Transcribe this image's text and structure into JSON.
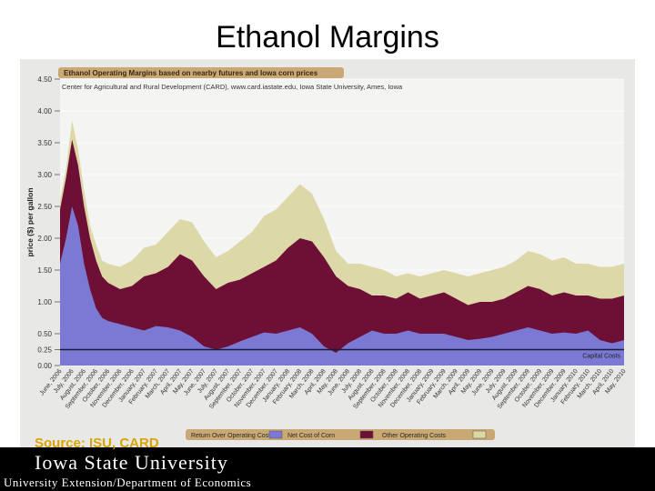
{
  "slide": {
    "title": "Ethanol Margins",
    "source": "Source: ISU, CARD",
    "university": "Iowa State University",
    "department": "University Extension/Department of Economics"
  },
  "colors": {
    "panel_bg": "#e8e8e6",
    "plot_bg": "#f4f4f2",
    "return_over_operating": "#ddd8a8",
    "net_cost_of_corn": "#6e0f36",
    "other_operating": "#7b79d4",
    "capital_cost_line": "#1a1a3a",
    "title_band": "#c9a874"
  },
  "chart_data": {
    "type": "area",
    "title": "Ethanol Operating Margins based on nearby futures and Iowa corn prices",
    "subtitle": "Center for Agricultural and Rural Development (CARD), www.card.iastate.edu, Iowa State University, Ames, Iowa",
    "ylabel": "price ($) per gallon",
    "xlabel": "",
    "ylim": [
      0,
      4.5
    ],
    "yticks": [
      "4.50",
      "4.00",
      "3.50",
      "3.00",
      "2.50",
      "2.00",
      "1.50",
      "1.00",
      "0.50",
      "0.25",
      "0.00"
    ],
    "ytick_values": [
      4.5,
      4.0,
      3.5,
      3.0,
      2.5,
      2.0,
      1.5,
      1.0,
      0.5,
      0.25,
      0.0
    ],
    "categories": [
      "June, 2006",
      "July, 2006",
      "August, 2006",
      "September, 2006",
      "October, 2006",
      "November, 2006",
      "December, 2006",
      "January, 2007",
      "February, 2007",
      "March, 2007",
      "April, 2007",
      "May, 2007",
      "June, 2007",
      "July, 2007",
      "August, 2007",
      "September, 2007",
      "October, 2007",
      "November, 2007",
      "December, 2007",
      "January, 2008",
      "February, 2008",
      "March, 2008",
      "April, 2008",
      "May, 2008",
      "June, 2008",
      "July, 2008",
      "August, 2008",
      "September, 2008",
      "October, 2008",
      "November, 2008",
      "December, 2008",
      "January, 2009",
      "February, 2009",
      "March, 2009",
      "April, 2009",
      "May, 2009",
      "June, 2009",
      "July, 2009",
      "August, 2009",
      "September, 2009",
      "October, 2009",
      "November, 2009",
      "December, 2009",
      "January, 2010",
      "February, 2010",
      "March, 2010",
      "April, 2010",
      "May, 2010"
    ],
    "x": [
      0,
      0.5,
      1,
      1.5,
      2,
      2.5,
      3,
      3.5,
      4,
      5,
      6,
      7,
      8,
      9,
      10,
      11,
      12,
      13,
      14,
      15,
      16,
      17,
      18,
      19,
      20,
      21,
      22,
      23,
      24,
      25,
      26,
      27,
      28,
      29,
      30,
      31,
      32,
      33,
      34,
      35,
      36,
      37,
      38,
      39,
      40,
      41,
      42,
      43,
      44,
      45,
      46,
      47
    ],
    "series": [
      {
        "name": "Other Operating Costs",
        "values": [
          1.6,
          2.0,
          2.5,
          2.2,
          1.6,
          1.2,
          0.9,
          0.75,
          0.7,
          0.65,
          0.6,
          0.55,
          0.62,
          0.6,
          0.55,
          0.45,
          0.3,
          0.25,
          0.3,
          0.38,
          0.45,
          0.52,
          0.5,
          0.55,
          0.6,
          0.5,
          0.3,
          0.2,
          0.35,
          0.45,
          0.55,
          0.5,
          0.5,
          0.55,
          0.5,
          0.5,
          0.5,
          0.45,
          0.4,
          0.42,
          0.45,
          0.5,
          0.55,
          0.6,
          0.55,
          0.5,
          0.52,
          0.5,
          0.55,
          0.4,
          0.35,
          0.4
        ]
      },
      {
        "name": "Net Cost of Corn",
        "values": [
          2.45,
          2.95,
          3.55,
          3.15,
          2.5,
          2.0,
          1.65,
          1.4,
          1.3,
          1.2,
          1.25,
          1.4,
          1.45,
          1.55,
          1.75,
          1.65,
          1.4,
          1.2,
          1.3,
          1.35,
          1.45,
          1.55,
          1.65,
          1.85,
          2.0,
          1.95,
          1.7,
          1.4,
          1.25,
          1.2,
          1.1,
          1.1,
          1.05,
          1.15,
          1.05,
          1.1,
          1.15,
          1.05,
          0.95,
          1.0,
          1.0,
          1.05,
          1.15,
          1.25,
          1.2,
          1.1,
          1.15,
          1.1,
          1.1,
          1.05,
          1.05,
          1.1
        ]
      },
      {
        "name": "Return Over Operating Costs",
        "values": [
          2.6,
          3.1,
          3.85,
          3.4,
          2.75,
          2.2,
          1.9,
          1.65,
          1.6,
          1.55,
          1.65,
          1.85,
          1.9,
          2.1,
          2.3,
          2.25,
          1.95,
          1.7,
          1.8,
          1.95,
          2.1,
          2.35,
          2.45,
          2.65,
          2.85,
          2.7,
          2.3,
          1.8,
          1.6,
          1.6,
          1.55,
          1.5,
          1.4,
          1.45,
          1.4,
          1.45,
          1.5,
          1.45,
          1.4,
          1.45,
          1.5,
          1.55,
          1.65,
          1.8,
          1.75,
          1.65,
          1.7,
          1.6,
          1.6,
          1.55,
          1.55,
          1.6
        ]
      }
    ],
    "capital_costs": {
      "name": "Capital Costs",
      "value": 0.25
    },
    "legend": [
      "Return Over Operating Costs",
      "Net Cost of Corn",
      "Other Operating Costs"
    ],
    "legend_position": "bottom",
    "grid": true
  }
}
